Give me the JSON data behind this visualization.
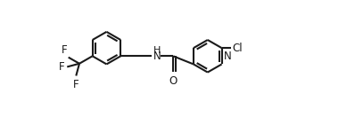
{
  "bg_color": "#ffffff",
  "line_color": "#1a1a1a",
  "line_width": 1.5,
  "font_size": 8.5,
  "figsize": [
    3.98,
    1.32
  ],
  "dpi": 100,
  "xlim": [
    -0.5,
    10.5
  ],
  "ylim": [
    -0.3,
    3.6
  ]
}
